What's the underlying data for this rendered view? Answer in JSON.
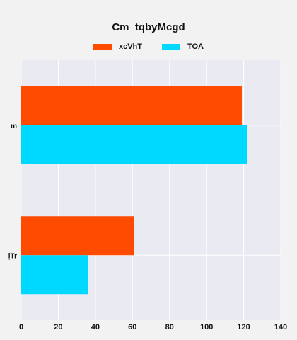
{
  "chart_data": {
    "type": "bar",
    "orientation": "horizontal",
    "title": "Cm  tqbyMcgd",
    "xlabel": "",
    "ylabel": "",
    "categories": [
      "m",
      "ịTr"
    ],
    "series": [
      {
        "name": "xcVhT",
        "color": "#ff4b00",
        "values": [
          119,
          61
        ]
      },
      {
        "name": "TOA",
        "color": "#00d9ff",
        "values": [
          122,
          36
        ]
      }
    ],
    "xlim": [
      0,
      140
    ],
    "xticks": [
      0,
      20,
      40,
      60,
      80,
      100,
      120,
      140
    ],
    "grid": true,
    "legend_position": "top-center",
    "plot_background": "#eaeaf2"
  }
}
